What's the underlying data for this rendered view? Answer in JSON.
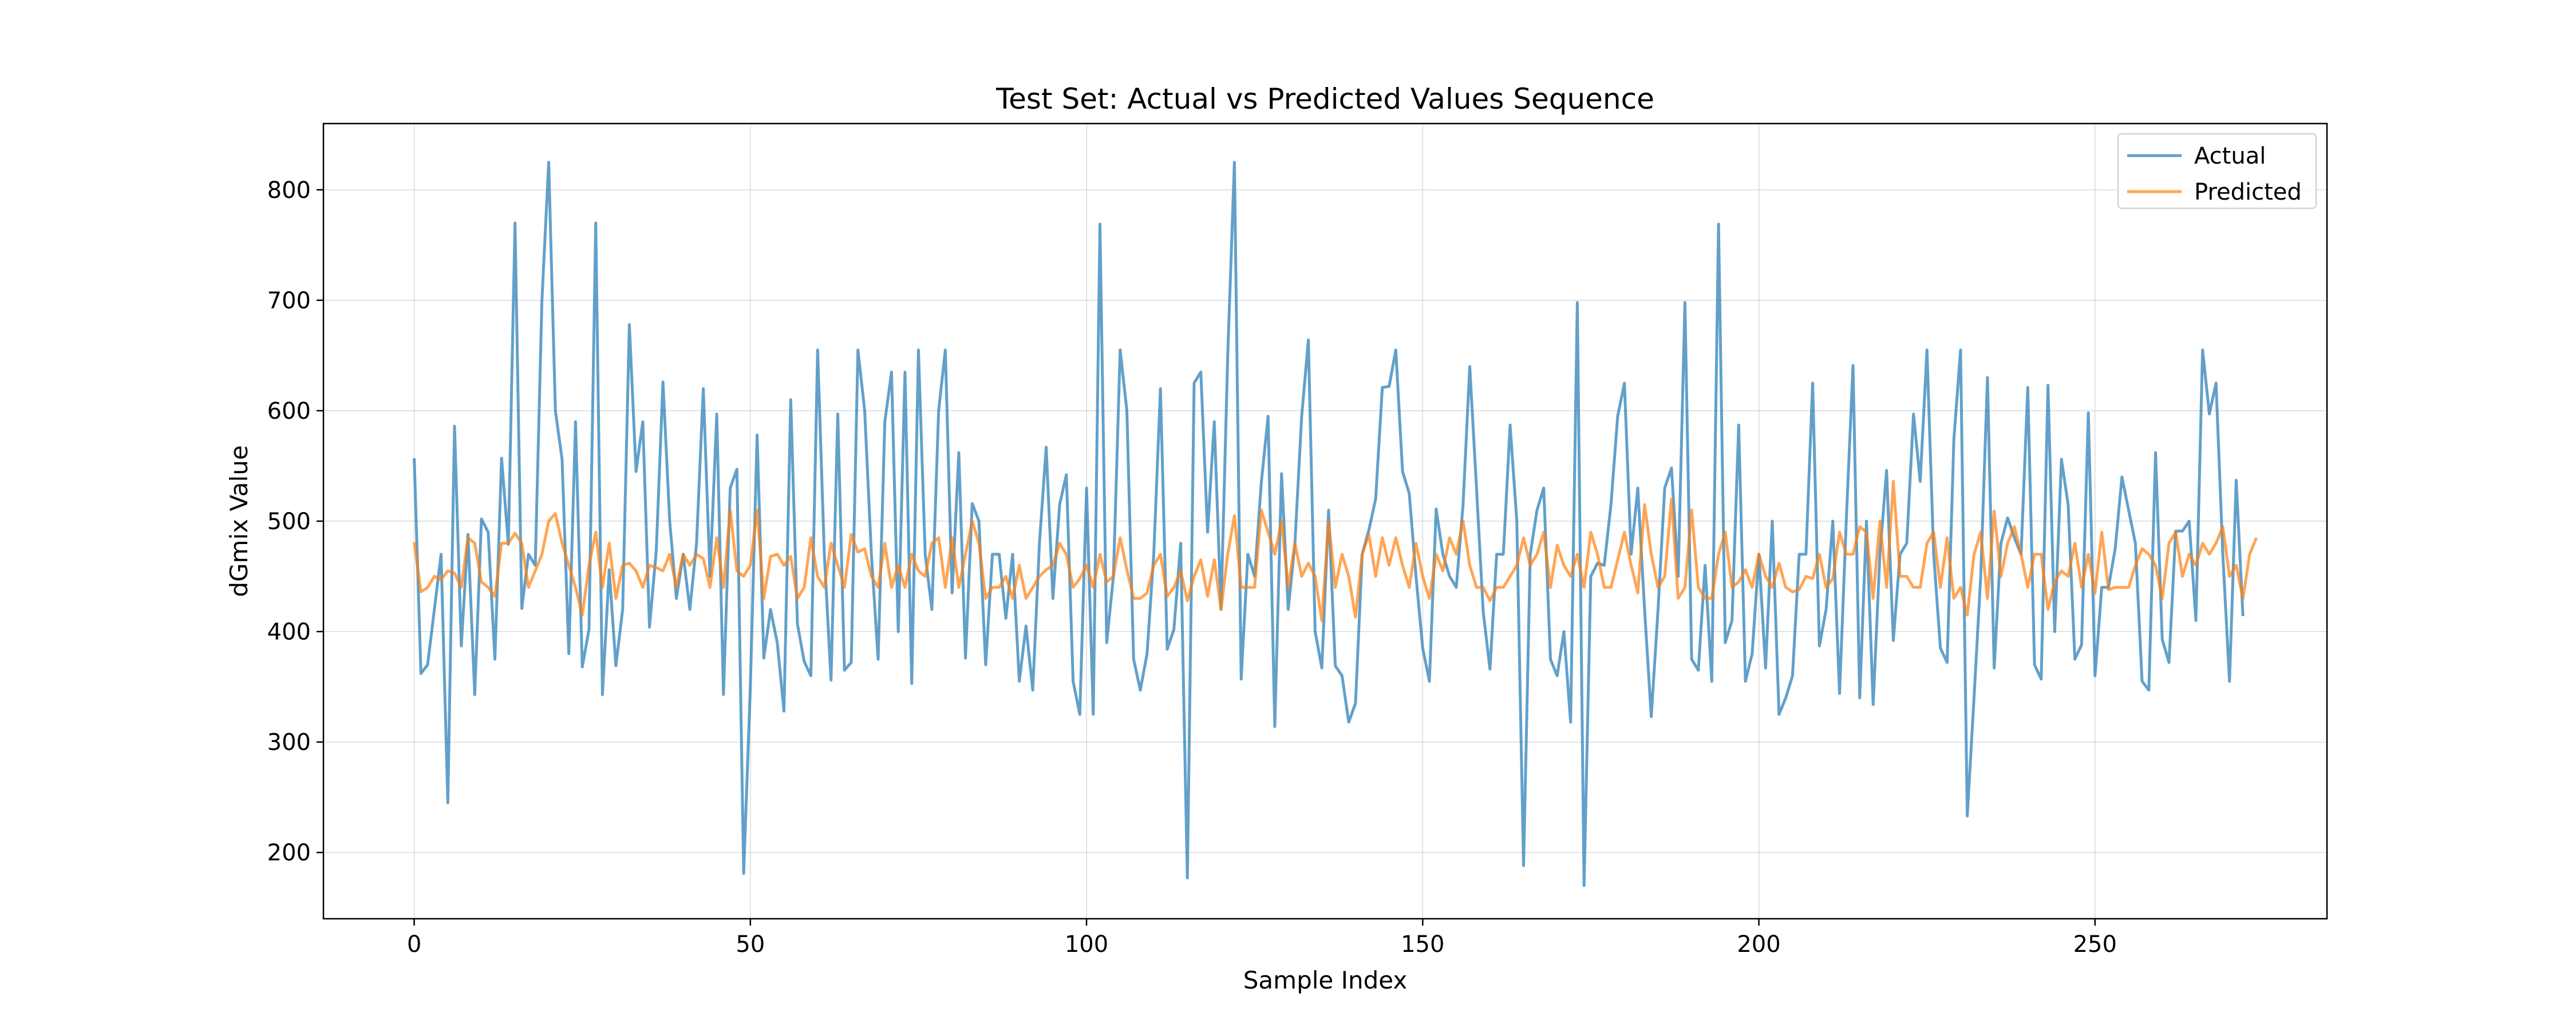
{
  "chart_data": {
    "type": "line",
    "title": "Test Set: Actual vs Predicted Values Sequence",
    "xlabel": "Sample Index",
    "ylabel": "dGmix Value",
    "xlim": [
      -13.5,
      284.5
    ],
    "ylim": [
      140,
      860
    ],
    "xticks": [
      0,
      50,
      100,
      150,
      200,
      250
    ],
    "yticks": [
      200,
      300,
      400,
      500,
      600,
      700,
      800
    ],
    "grid": true,
    "legend_position": "top-right",
    "series": [
      {
        "name": "Actual",
        "color": "#1f77b4",
        "values": [
          557,
          362,
          370,
          420,
          470,
          245,
          586,
          387,
          488,
          343,
          502,
          490,
          375,
          557,
          479,
          770,
          421,
          470,
          460,
          700,
          825,
          600,
          556,
          380,
          590,
          368,
          402,
          770,
          343,
          456,
          369,
          420,
          678,
          545,
          590,
          404,
          473,
          626,
          500,
          430,
          470,
          420,
          480,
          620,
          450,
          597,
          343,
          530,
          547,
          181,
          350,
          578,
          376,
          420,
          390,
          328,
          610,
          407,
          373,
          360,
          655,
          470,
          356,
          597,
          365,
          372,
          655,
          600,
          470,
          375,
          590,
          635,
          400,
          635,
          353,
          655,
          470,
          420,
          600,
          655,
          435,
          562,
          376,
          516,
          500,
          370,
          470,
          470,
          412,
          470,
          355,
          405,
          347,
          480,
          567,
          430,
          515,
          542,
          355,
          325,
          530,
          325,
          769,
          390,
          450,
          655,
          600,
          375,
          347,
          380,
          470,
          620,
          384,
          402,
          480,
          177,
          625,
          635,
          490,
          590,
          420,
          650,
          825,
          357,
          470,
          450,
          535,
          595,
          314,
          543,
          420,
          480,
          595,
          664,
          400,
          367,
          510,
          369,
          360,
          318,
          335,
          470,
          492,
          520,
          621,
          622,
          655,
          545,
          525,
          450,
          385,
          355,
          511,
          470,
          450,
          440,
          515,
          640,
          530,
          418,
          366,
          470,
          470,
          587,
          500,
          188,
          470,
          510,
          530,
          375,
          360,
          400,
          318,
          698,
          170,
          450,
          462,
          460,
          515,
          595,
          625,
          470,
          530,
          420,
          323,
          420,
          530,
          548,
          450,
          698,
          375,
          365,
          460,
          355,
          769,
          390,
          410,
          587,
          355,
          380,
          470,
          367,
          500,
          325,
          340,
          360,
          470,
          470,
          625,
          387,
          420,
          500,
          344,
          500,
          641,
          340,
          500,
          334,
          470,
          546,
          392,
          470,
          480,
          597,
          536,
          655,
          470,
          385,
          372,
          574,
          655,
          233,
          340,
          450,
          630,
          367,
          480,
          503,
          485,
          470,
          621,
          370,
          357,
          623,
          400,
          556,
          515,
          375,
          388,
          598,
          360,
          440,
          440,
          475,
          540,
          510,
          480,
          355,
          347,
          562,
          393,
          372,
          491,
          491,
          500,
          410,
          655,
          597,
          625,
          470,
          355,
          537,
          414
        ]
      },
      {
        "name": "Predicted",
        "color": "#ff7f0e",
        "values": [
          481,
          436,
          440,
          450,
          447,
          455,
          453,
          440,
          485,
          480,
          445,
          440,
          432,
          480,
          480,
          489,
          480,
          440,
          455,
          470,
          500,
          507,
          480,
          460,
          440,
          415,
          460,
          490,
          440,
          480,
          430,
          460,
          462,
          455,
          440,
          460,
          458,
          455,
          470,
          440,
          470,
          460,
          470,
          466,
          440,
          485,
          440,
          510,
          455,
          450,
          460,
          510,
          430,
          468,
          470,
          460,
          468,
          430,
          440,
          485,
          450,
          440,
          480,
          460,
          440,
          488,
          472,
          475,
          450,
          440,
          480,
          440,
          460,
          440,
          470,
          455,
          450,
          480,
          485,
          440,
          485,
          440,
          470,
          500,
          480,
          430,
          440,
          440,
          450,
          430,
          460,
          430,
          440,
          450,
          456,
          460,
          480,
          470,
          440,
          448,
          460,
          440,
          470,
          445,
          450,
          485,
          456,
          430,
          430,
          435,
          460,
          470,
          432,
          440,
          455,
          428,
          450,
          465,
          432,
          465,
          420,
          470,
          505,
          440,
          440,
          440,
          510,
          490,
          470,
          500,
          440,
          480,
          450,
          462,
          450,
          410,
          500,
          440,
          470,
          450,
          413,
          470,
          488,
          450,
          485,
          460,
          485,
          460,
          440,
          480,
          450,
          430,
          470,
          455,
          485,
          470,
          500,
          460,
          440,
          440,
          428,
          440,
          440,
          450,
          460,
          485,
          460,
          470,
          490,
          440,
          478,
          460,
          450,
          470,
          440,
          490,
          470,
          440,
          440,
          465,
          490,
          460,
          435,
          515,
          470,
          440,
          450,
          520,
          430,
          440,
          510,
          440,
          430,
          430,
          470,
          490,
          440,
          445,
          456,
          440,
          470,
          450,
          440,
          462,
          440,
          436,
          438,
          450,
          448,
          470,
          440,
          448,
          490,
          470,
          470,
          495,
          490,
          430,
          500,
          440,
          536,
          450,
          450,
          440,
          440,
          480,
          490,
          440,
          485,
          430,
          440,
          415,
          470,
          490,
          430,
          509,
          450,
          480,
          495,
          470,
          440,
          470,
          470,
          420,
          445,
          455,
          450,
          480,
          440,
          470,
          435,
          490,
          438,
          440,
          440,
          440,
          460,
          475,
          470,
          460,
          430,
          480,
          490,
          450,
          470,
          460,
          480,
          470,
          480,
          495,
          450,
          460,
          430,
          470,
          485
        ]
      }
    ]
  }
}
